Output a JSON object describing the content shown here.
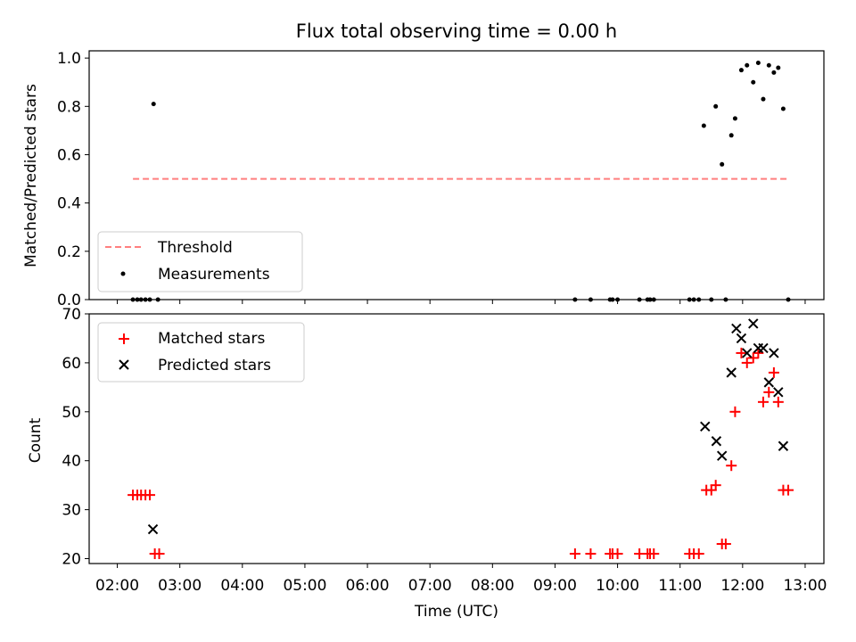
{
  "figure": {
    "title": "Flux total observing time = 0.00 h",
    "xlabel": "Time (UTC)",
    "x_ticks": [
      "02:00",
      "03:00",
      "04:00",
      "05:00",
      "06:00",
      "07:00",
      "08:00",
      "09:00",
      "10:00",
      "11:00",
      "12:00",
      "13:00"
    ]
  },
  "chart_data": [
    {
      "type": "scatter",
      "ylabel": "Matched/Predicted stars",
      "xlim_hours": [
        1.55,
        13.3
      ],
      "ylim": [
        0.0,
        1.03
      ],
      "y_ticks": [
        "0.0",
        "0.2",
        "0.4",
        "0.6",
        "0.8",
        "1.0"
      ],
      "legend_position": "lower-left",
      "series": [
        {
          "name": "Threshold",
          "style": "dashed-line",
          "color": "#ff7f7f",
          "points": [
            [
              2.25,
              0.5
            ],
            [
              12.75,
              0.5
            ]
          ]
        },
        {
          "name": "Measurements",
          "style": "dot",
          "color": "#000000",
          "points": [
            [
              2.25,
              0.0
            ],
            [
              2.32,
              0.0
            ],
            [
              2.38,
              0.0
            ],
            [
              2.45,
              0.0
            ],
            [
              2.52,
              0.0
            ],
            [
              2.58,
              0.81
            ],
            [
              2.65,
              0.0
            ],
            [
              9.32,
              0.0
            ],
            [
              9.57,
              0.0
            ],
            [
              9.88,
              0.0
            ],
            [
              9.92,
              0.0
            ],
            [
              10.0,
              0.0
            ],
            [
              10.35,
              0.0
            ],
            [
              10.48,
              0.0
            ],
            [
              10.52,
              0.0
            ],
            [
              10.58,
              0.0
            ],
            [
              11.15,
              0.0
            ],
            [
              11.22,
              0.0
            ],
            [
              11.3,
              0.0
            ],
            [
              11.38,
              0.72
            ],
            [
              11.5,
              0.0
            ],
            [
              11.57,
              0.8
            ],
            [
              11.67,
              0.56
            ],
            [
              11.73,
              0.0
            ],
            [
              11.82,
              0.68
            ],
            [
              11.88,
              0.75
            ],
            [
              11.98,
              0.95
            ],
            [
              12.07,
              0.97
            ],
            [
              12.17,
              0.9
            ],
            [
              12.25,
              0.98
            ],
            [
              12.33,
              0.83
            ],
            [
              12.42,
              0.97
            ],
            [
              12.5,
              0.94
            ],
            [
              12.57,
              0.96
            ],
            [
              12.65,
              0.79
            ],
            [
              12.73,
              0.0
            ]
          ]
        }
      ]
    },
    {
      "type": "scatter",
      "ylabel": "Count",
      "xlim_hours": [
        1.55,
        13.3
      ],
      "ylim": [
        19,
        70
      ],
      "y_ticks": [
        "20",
        "30",
        "40",
        "50",
        "60",
        "70"
      ],
      "legend_position": "upper-left",
      "series": [
        {
          "name": "Matched stars",
          "style": "plus",
          "color": "#ff0000",
          "points": [
            [
              2.25,
              33
            ],
            [
              2.32,
              33
            ],
            [
              2.38,
              33
            ],
            [
              2.45,
              33
            ],
            [
              2.52,
              33
            ],
            [
              2.6,
              21
            ],
            [
              2.67,
              21
            ],
            [
              9.32,
              21
            ],
            [
              9.57,
              21
            ],
            [
              9.88,
              21
            ],
            [
              9.92,
              21
            ],
            [
              10.0,
              21
            ],
            [
              10.35,
              21
            ],
            [
              10.48,
              21
            ],
            [
              10.52,
              21
            ],
            [
              10.58,
              21
            ],
            [
              11.15,
              21
            ],
            [
              11.22,
              21
            ],
            [
              11.3,
              21
            ],
            [
              11.42,
              34
            ],
            [
              11.5,
              34
            ],
            [
              11.57,
              35
            ],
            [
              11.67,
              23
            ],
            [
              11.73,
              23
            ],
            [
              11.82,
              39
            ],
            [
              11.88,
              50
            ],
            [
              11.98,
              62
            ],
            [
              12.07,
              60
            ],
            [
              12.17,
              61
            ],
            [
              12.25,
              62
            ],
            [
              12.33,
              52
            ],
            [
              12.42,
              54
            ],
            [
              12.5,
              58
            ],
            [
              12.57,
              52
            ],
            [
              12.65,
              34
            ],
            [
              12.73,
              34
            ]
          ]
        },
        {
          "name": "Predicted stars",
          "style": "x",
          "color": "#000000",
          "points": [
            [
              2.57,
              26
            ],
            [
              11.4,
              47
            ],
            [
              11.58,
              44
            ],
            [
              11.67,
              41
            ],
            [
              11.82,
              58
            ],
            [
              11.9,
              67
            ],
            [
              11.98,
              65
            ],
            [
              12.07,
              62
            ],
            [
              12.17,
              68
            ],
            [
              12.25,
              63
            ],
            [
              12.33,
              63
            ],
            [
              12.42,
              56
            ],
            [
              12.5,
              62
            ],
            [
              12.57,
              54
            ],
            [
              12.65,
              43
            ]
          ]
        }
      ]
    }
  ]
}
